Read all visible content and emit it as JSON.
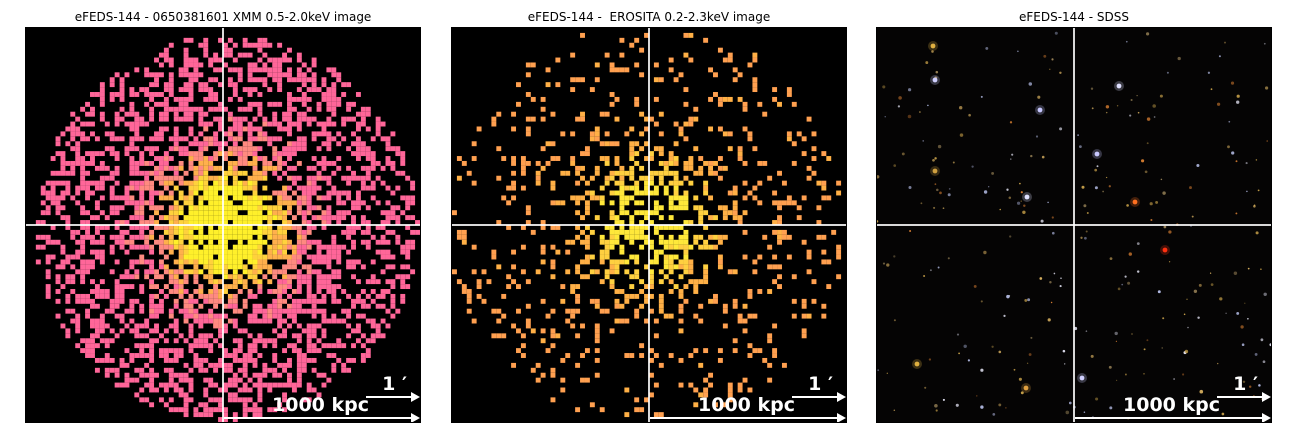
{
  "panels": [
    {
      "title": "eFEDS-144 - 0650381601 XMM 0.5-2.0keV image",
      "kind": "xray-dense",
      "colors": [
        "#ff6699",
        "#ff6699",
        "#ff8a80",
        "#ffb04c",
        "#ffd23c",
        "#fff02a"
      ]
    },
    {
      "title": "eFEDS-144 -  EROSITA 0.2-2.3keV image",
      "kind": "xray-sparse",
      "colors": [
        "#ffa050",
        "#ffb046",
        "#ffd040",
        "#ffe83a"
      ]
    },
    {
      "title": "eFEDS-144 - SDSS",
      "kind": "optical"
    }
  ],
  "scalebar": {
    "angle_label": "1 ′",
    "distance_label": "1000 kpc"
  },
  "icons": {
    "scale-arrow": "right-arrow"
  }
}
